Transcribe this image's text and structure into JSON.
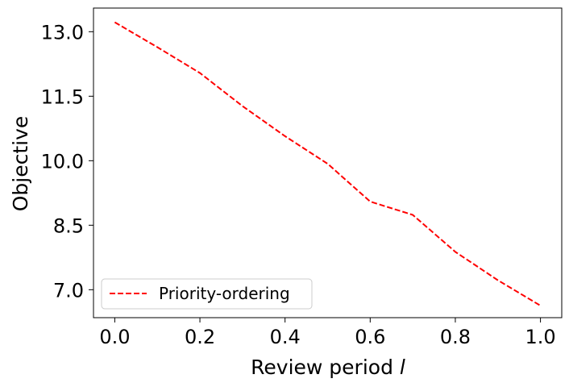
{
  "chart_data": {
    "type": "line",
    "title": "",
    "xlabel": "Review period l",
    "xlabel_text": "Review period ",
    "xlabel_var": "l",
    "ylabel": "Objective",
    "xlim": [
      -0.05,
      1.05
    ],
    "ylim": [
      6.35,
      13.55
    ],
    "xticks": [
      0.0,
      0.2,
      0.4,
      0.6,
      0.8,
      1.0
    ],
    "xtick_labels": [
      "0.0",
      "0.2",
      "0.4",
      "0.6",
      "0.8",
      "1.0"
    ],
    "yticks": [
      7.0,
      8.5,
      10.0,
      11.5,
      13.0
    ],
    "ytick_labels": [
      "7.0",
      "8.5",
      "10.0",
      "11.5",
      "13.0"
    ],
    "grid": false,
    "legend_position": "lower-left",
    "series": [
      {
        "name": "Priority-ordering",
        "color": "#ff0000",
        "line_style": "dashed",
        "x": [
          0.0,
          0.1,
          0.2,
          0.3,
          0.4,
          0.5,
          0.6,
          0.7,
          0.8,
          0.9,
          1.0
        ],
        "y": [
          13.22,
          12.64,
          12.04,
          11.27,
          10.57,
          9.93,
          9.05,
          8.74,
          7.88,
          7.22,
          6.63
        ]
      }
    ]
  }
}
